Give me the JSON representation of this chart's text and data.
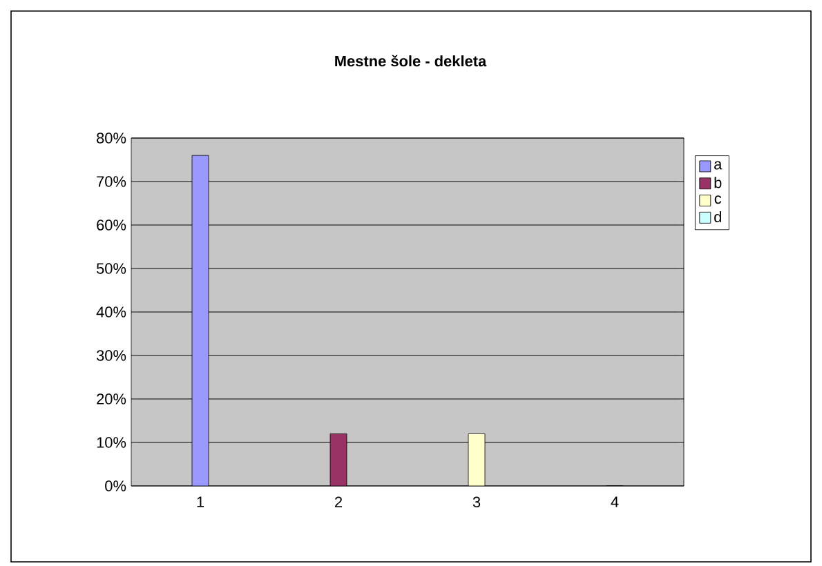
{
  "chart_data": {
    "type": "bar",
    "title": "Mestne šole - dekleta",
    "categories": [
      "1",
      "2",
      "3",
      "4"
    ],
    "series": [
      {
        "name": "a",
        "color": "#9999ff",
        "values": [
          76,
          null,
          null,
          null
        ]
      },
      {
        "name": "b",
        "color": "#993366",
        "values": [
          null,
          12,
          null,
          null
        ]
      },
      {
        "name": "c",
        "color": "#ffffcc",
        "values": [
          null,
          null,
          12,
          null
        ]
      },
      {
        "name": "d",
        "color": "#ccffff",
        "values": [
          null,
          null,
          null,
          0
        ]
      }
    ],
    "ylim": [
      0,
      80
    ],
    "yticks": [
      {
        "value": 0,
        "label": "0%"
      },
      {
        "value": 10,
        "label": "10%"
      },
      {
        "value": 20,
        "label": "20%"
      },
      {
        "value": 30,
        "label": "30%"
      },
      {
        "value": 40,
        "label": "40%"
      },
      {
        "value": 50,
        "label": "50%"
      },
      {
        "value": 60,
        "label": "60%"
      },
      {
        "value": 70,
        "label": "70%"
      },
      {
        "value": 80,
        "label": "80%"
      }
    ],
    "grid": "y",
    "legend": "right"
  }
}
